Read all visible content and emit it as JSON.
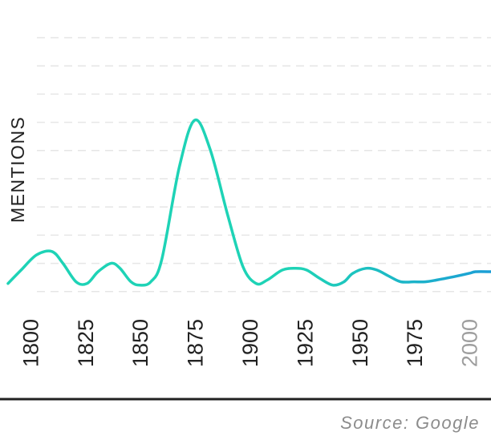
{
  "chart_data": {
    "type": "line",
    "title": "",
    "xlabel": "",
    "ylabel": "MENTIONS",
    "x_ticks": [
      "1800",
      "1825",
      "1850",
      "1875",
      "1900",
      "1925",
      "1950",
      "1975",
      "2000"
    ],
    "x_ticks_muted": [
      "2000"
    ],
    "xlim": [
      1790,
      2010
    ],
    "ylim": [
      0,
      100
    ],
    "grid": true,
    "legend": "none",
    "series": [
      {
        "x": [
          1790,
          1796,
          1803,
          1810,
          1815,
          1821,
          1826,
          1831,
          1837,
          1841,
          1846,
          1850,
          1855,
          1860,
          1868,
          1875,
          1882,
          1890,
          1897,
          1903,
          1908,
          1915,
          1921,
          1926,
          1932,
          1938,
          1943,
          1947,
          1953,
          1958,
          1964,
          1969,
          1975,
          1980,
          1985,
          1993,
          2000,
          2003,
          2010
        ],
        "y": [
          3,
          11,
          20,
          22,
          15,
          4,
          3,
          10,
          15,
          12,
          4,
          2,
          4,
          17,
          72,
          100,
          83,
          44,
          13,
          3,
          5,
          11,
          12,
          11,
          6,
          2,
          4,
          9,
          12,
          11,
          7,
          4,
          4,
          4,
          5,
          7,
          9,
          10,
          10
        ]
      }
    ],
    "colors": {
      "line_start": "#1ed3b6",
      "line_end": "#1b9ed6",
      "grid": "#e6e6e6",
      "axis": "#222222",
      "muted_tick": "#9e9e9e"
    }
  },
  "source": "Source: Google"
}
